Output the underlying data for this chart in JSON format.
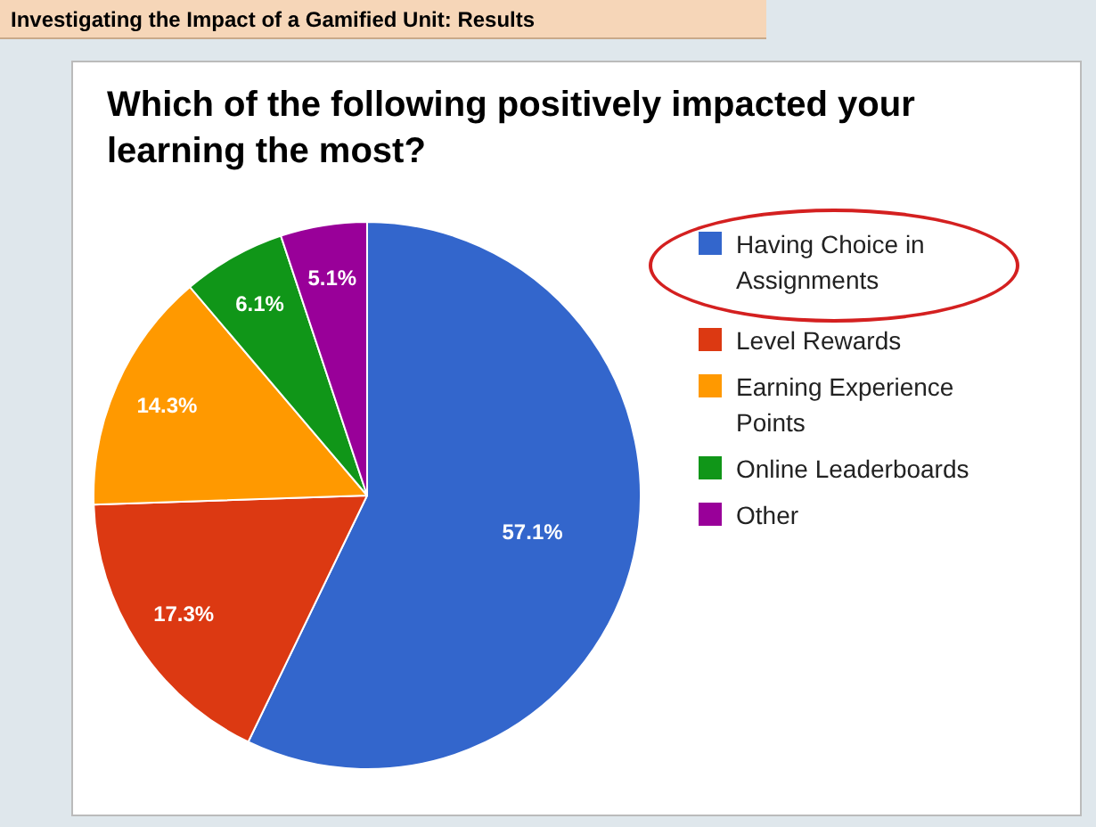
{
  "chart_data": {
    "type": "pie",
    "title": "Which of the following positively impacted your learning the most?",
    "annotations": [
      "Investigating the Impact of a Gamified Unit: Results"
    ],
    "categories": [
      "Having Choice in Assignments",
      "Level Rewards",
      "Earning Experience Points",
      "Online Leaderboards",
      "Other"
    ],
    "values": [
      57.1,
      17.3,
      14.3,
      6.1,
      5.1
    ],
    "value_labels": [
      "57.1%",
      "17.3%",
      "14.3%",
      "6.1%",
      "5.1%"
    ],
    "colors": [
      "#3366cc",
      "#dc3912",
      "#ff9900",
      "#109618",
      "#990099"
    ],
    "legend": "right"
  }
}
